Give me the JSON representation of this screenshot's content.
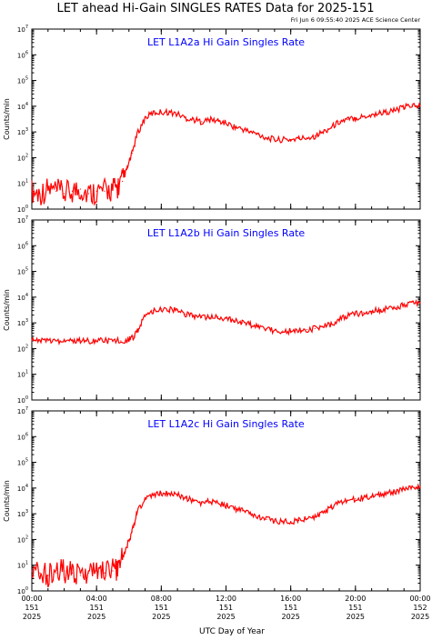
{
  "page": {
    "title": "LET ahead Hi-Gain SINGLES RATES Data for 2025-151",
    "timestamp": "Fri Jun  6 09:55:40 2025 ACE Science Center",
    "xlabel": "UTC Day of Year"
  },
  "colors": {
    "line": "#ff0000",
    "panel_title": "#0000ff",
    "axis": "#000000"
  },
  "chart_data": [
    {
      "type": "line",
      "title": "LET L1A2a Hi Gain Singles Rate",
      "ylabel": "Counts/min",
      "yscale": "log",
      "ylim": [
        1,
        10000000
      ],
      "xlim": [
        0,
        24
      ],
      "x_unit": "hours UTC, day 151 of 2025",
      "series": [
        {
          "x": [
            0,
            0.5,
            1,
            1.5,
            2,
            2.5,
            3,
            3.5,
            4,
            4.5,
            5,
            5.3,
            5.6,
            5.9,
            6.2,
            6.5,
            7,
            7.5,
            8,
            8.5,
            9,
            9.5,
            10,
            10.5,
            11,
            11.5,
            12,
            12.5,
            13,
            13.5,
            14,
            14.5,
            15,
            15.5,
            16,
            16.5,
            17,
            17.5,
            18,
            18.5,
            19,
            19.5,
            20,
            20.5,
            21,
            21.5,
            22,
            22.5,
            23,
            23.5,
            24
          ],
          "values": [
            5,
            4,
            6,
            5,
            4,
            5,
            6,
            4,
            5,
            5,
            6,
            7,
            12,
            40,
            150,
            800,
            3500,
            5500,
            6000,
            5800,
            5000,
            3500,
            3000,
            2500,
            3000,
            2700,
            2200,
            1600,
            1300,
            1000,
            800,
            600,
            500,
            500,
            500,
            550,
            600,
            700,
            1000,
            1500,
            2500,
            3000,
            3500,
            4000,
            4500,
            5500,
            6000,
            7000,
            9000,
            11000,
            10000
          ]
        }
      ]
    },
    {
      "type": "line",
      "title": "LET L1A2b Hi Gain Singles Rate",
      "ylabel": "Counts/min",
      "yscale": "log",
      "ylim": [
        1,
        10000000
      ],
      "xlim": [
        0,
        24
      ],
      "x_unit": "hours UTC, day 151 of 2025",
      "series": [
        {
          "x": [
            0,
            0.5,
            1,
            1.5,
            2,
            2.5,
            3,
            3.5,
            4,
            4.5,
            5,
            5.5,
            6,
            6.3,
            6.6,
            7,
            7.5,
            8,
            8.5,
            9,
            9.5,
            10,
            10.5,
            11,
            11.5,
            12,
            12.5,
            13,
            13.5,
            14,
            14.5,
            15,
            15.5,
            16,
            16.5,
            17,
            17.5,
            18,
            18.5,
            19,
            19.5,
            20,
            20.5,
            21,
            21.5,
            22,
            22.5,
            23,
            23.5,
            24
          ],
          "values": [
            200,
            200,
            200,
            200,
            200,
            200,
            200,
            200,
            200,
            200,
            200,
            200,
            220,
            300,
            600,
            1800,
            3000,
            3500,
            3300,
            3000,
            2200,
            1900,
            1600,
            1600,
            1700,
            1500,
            1200,
            1000,
            850,
            700,
            600,
            500,
            480,
            480,
            500,
            550,
            600,
            700,
            900,
            1300,
            1800,
            2200,
            2500,
            2800,
            3200,
            3500,
            4000,
            5000,
            6500,
            6000
          ]
        }
      ]
    },
    {
      "type": "line",
      "title": "LET L1A2c Hi Gain Singles Rate",
      "ylabel": "Counts/min",
      "yscale": "log",
      "ylim": [
        1,
        10000000
      ],
      "xlim": [
        0,
        24
      ],
      "x_unit": "hours UTC, day 151 of 2025",
      "series": [
        {
          "x": [
            0,
            0.5,
            1,
            1.5,
            2,
            2.5,
            3,
            3.5,
            4,
            4.5,
            5,
            5.3,
            5.6,
            5.9,
            6.2,
            6.5,
            7,
            7.5,
            8,
            8.5,
            9,
            9.5,
            10,
            10.5,
            11,
            11.5,
            12,
            12.5,
            13,
            13.5,
            14,
            14.5,
            15,
            15.5,
            16,
            16.5,
            17,
            17.5,
            18,
            18.5,
            19,
            19.5,
            20,
            20.5,
            21,
            21.5,
            22,
            22.5,
            23,
            23.5,
            24
          ],
          "values": [
            6,
            5,
            4,
            5,
            6,
            5,
            4,
            5,
            6,
            5,
            6,
            8,
            20,
            60,
            200,
            1200,
            3500,
            5500,
            6500,
            6200,
            5500,
            4000,
            3200,
            2600,
            3000,
            2600,
            2100,
            1600,
            1300,
            1000,
            800,
            600,
            500,
            480,
            500,
            550,
            620,
            750,
            1100,
            1700,
            2600,
            3200,
            3800,
            4200,
            4800,
            5500,
            6500,
            7500,
            9500,
            12000,
            11000
          ]
        }
      ]
    }
  ],
  "x_ticks": [
    {
      "t": 0,
      "time": "00:00",
      "doy": "151",
      "year": "2025"
    },
    {
      "t": 4,
      "time": "04:00",
      "doy": "151",
      "year": "2025"
    },
    {
      "t": 8,
      "time": "08:00",
      "doy": "151",
      "year": "2025"
    },
    {
      "t": 12,
      "time": "12:00",
      "doy": "151",
      "year": "2025"
    },
    {
      "t": 16,
      "time": "16:00",
      "doy": "151",
      "year": "2025"
    },
    {
      "t": 20,
      "time": "20:00",
      "doy": "151",
      "year": "2025"
    },
    {
      "t": 24,
      "time": "00:00",
      "doy": "152",
      "year": "2025"
    }
  ],
  "y_ticks": [
    {
      "v": 1,
      "base": "10",
      "exp": "0"
    },
    {
      "v": 10,
      "base": "10",
      "exp": "1"
    },
    {
      "v": 100,
      "base": "10",
      "exp": "2"
    },
    {
      "v": 1000,
      "base": "10",
      "exp": "3"
    },
    {
      "v": 10000,
      "base": "10",
      "exp": "4"
    },
    {
      "v": 100000,
      "base": "10",
      "exp": "5"
    },
    {
      "v": 1000000,
      "base": "10",
      "exp": "6"
    },
    {
      "v": 10000000,
      "base": "10",
      "exp": "7"
    }
  ]
}
